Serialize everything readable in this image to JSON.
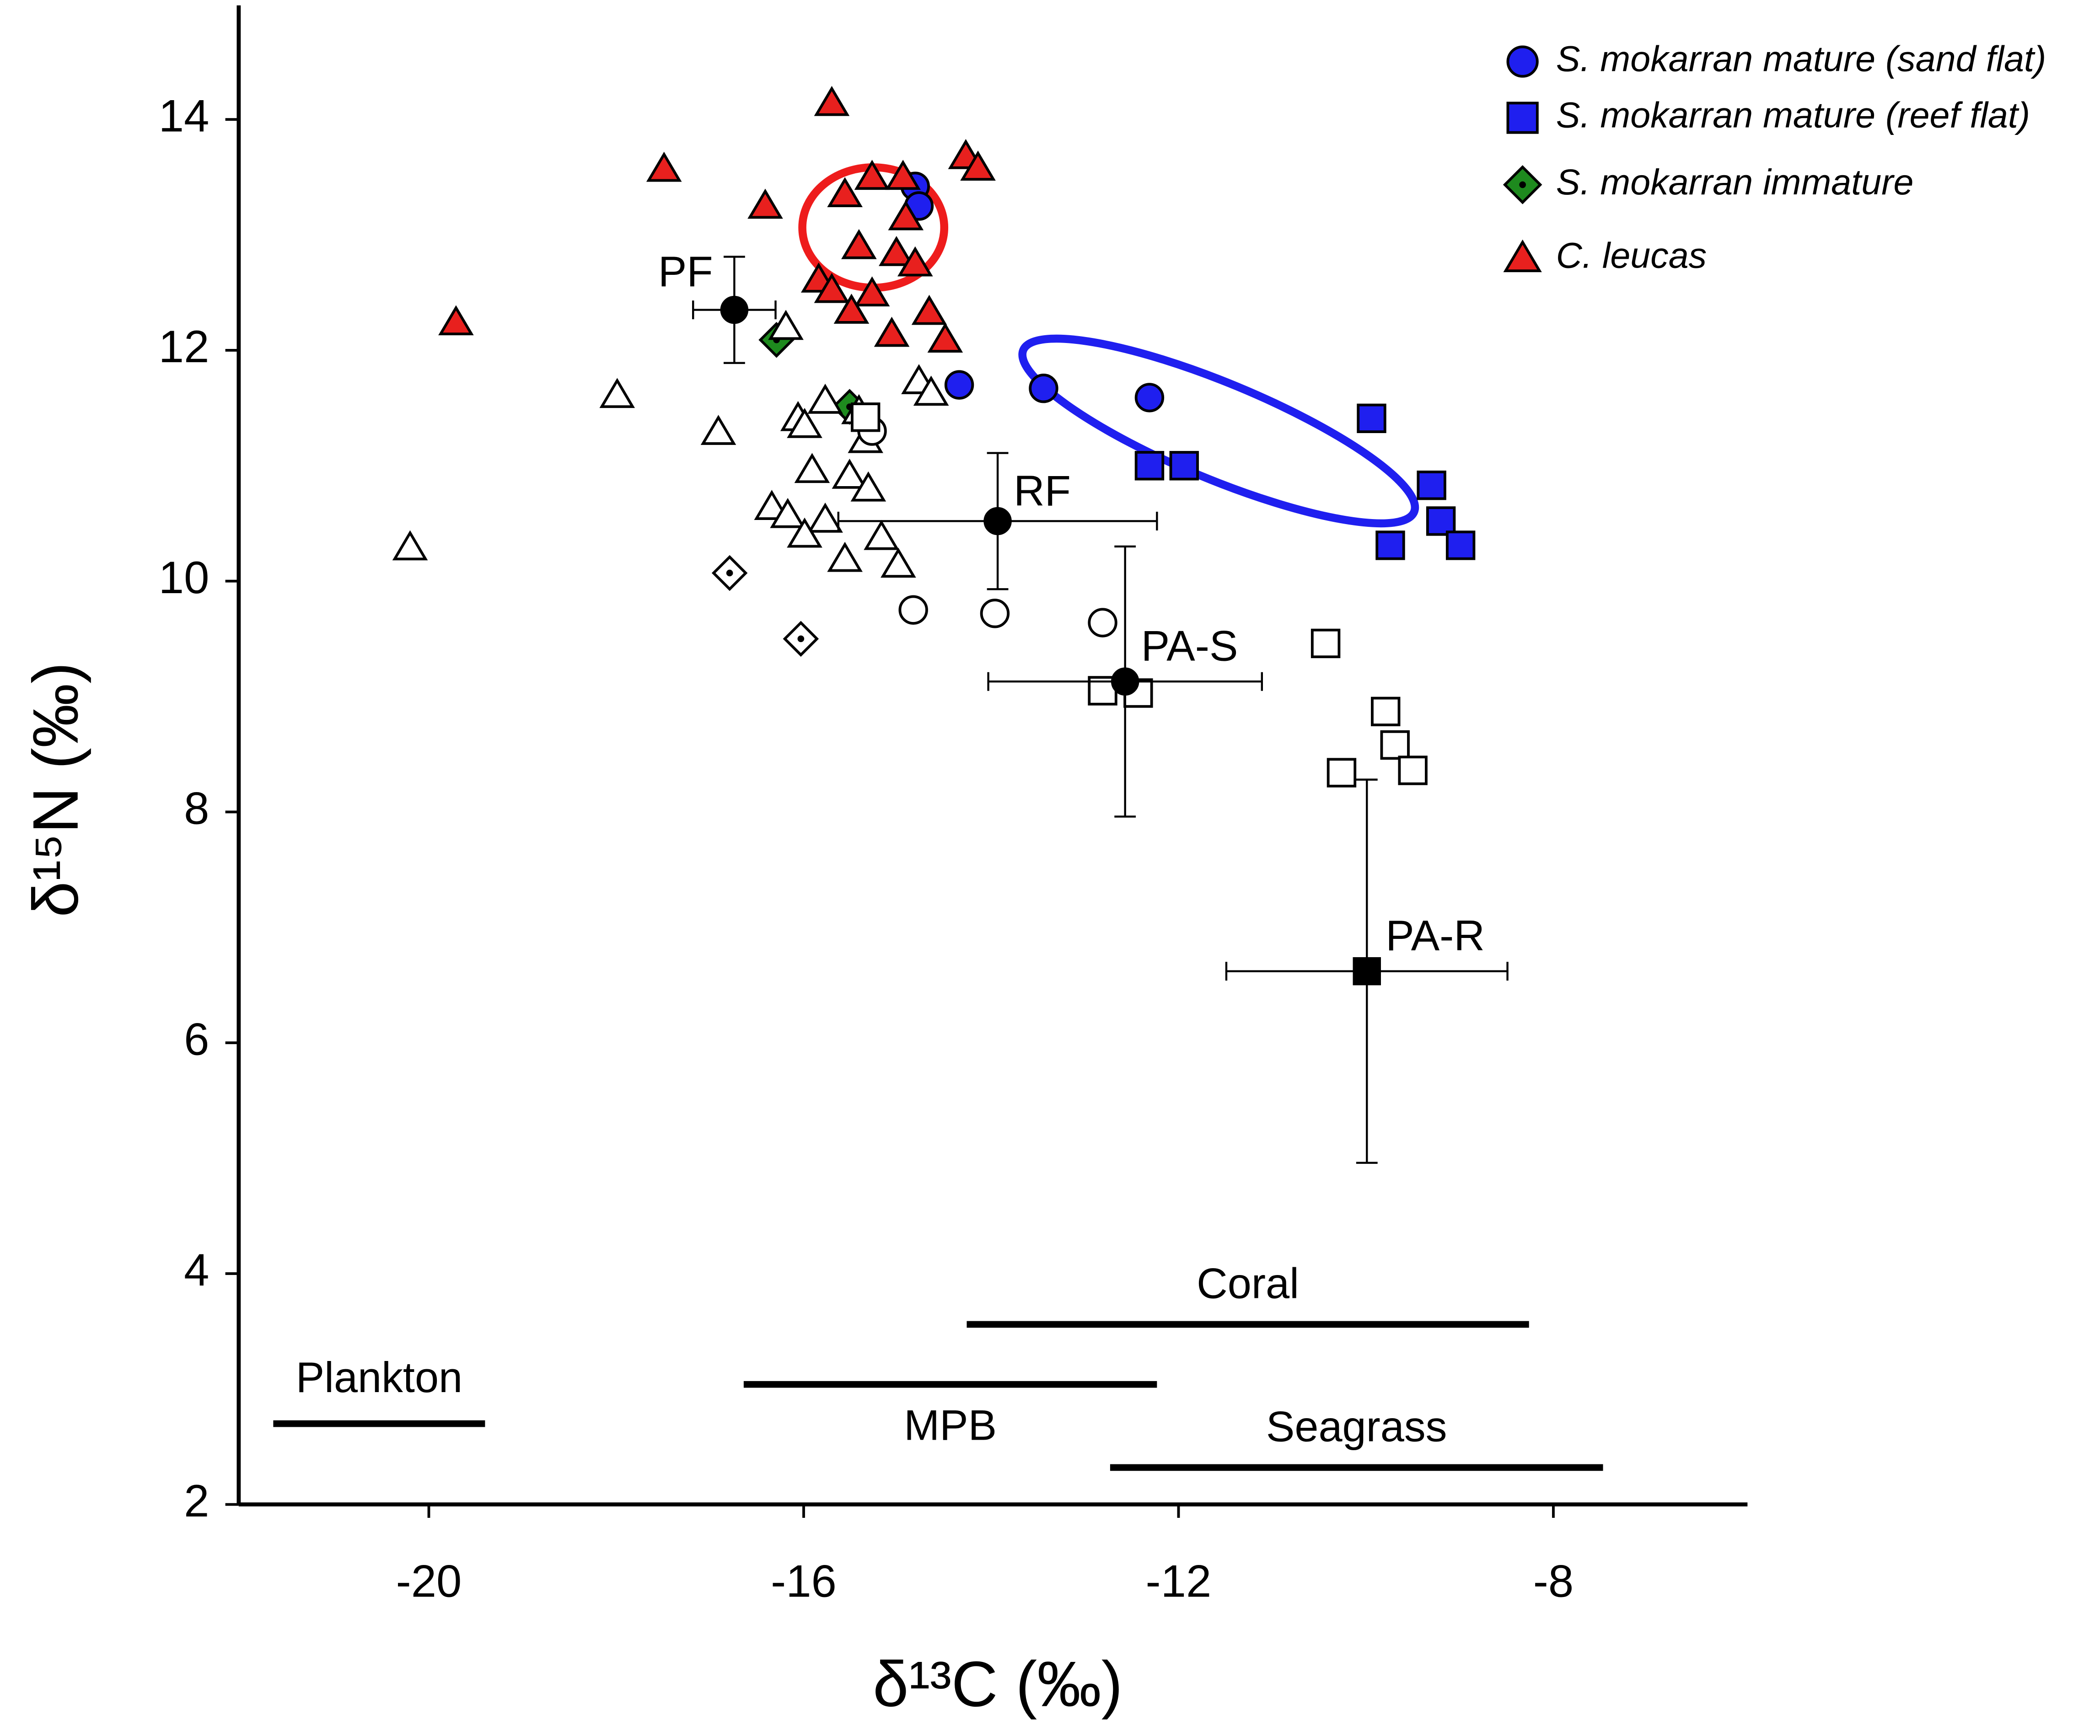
{
  "chart_data": {
    "type": "scatter",
    "xlabel": "δ¹³C (‰)",
    "ylabel": "δ¹⁵N (‰)",
    "xlim": [
      -22,
      -6
    ],
    "ylim": [
      2,
      15
    ],
    "xticks": [
      -20,
      -16,
      -12,
      -8
    ],
    "yticks": [
      2,
      4,
      6,
      8,
      10,
      12,
      14
    ],
    "series": [
      {
        "name": "S. mokarran mature (sand flat)",
        "color": "#1f1fef",
        "marker": "circle",
        "x": [
          -14.81,
          -14.77,
          -14.34,
          -13.44,
          -12.31
        ],
        "y": [
          13.42,
          13.25,
          11.7,
          11.67,
          11.59
        ]
      },
      {
        "name": "S. mokarran mature (reef flat)",
        "color": "#1f1fef",
        "marker": "square",
        "x": [
          -9.94,
          -12.31,
          -11.94,
          -9.3,
          -9.2,
          -9.74,
          -8.99
        ],
        "y": [
          11.41,
          11.0,
          11.0,
          10.83,
          10.52,
          10.31,
          10.31
        ]
      },
      {
        "name": "S. mokarran immature",
        "color": "#1e8a1e",
        "marker": "diamond",
        "x": [
          -16.29,
          -15.51
        ],
        "y": [
          12.09,
          11.51
        ]
      },
      {
        "name": "C. leucas",
        "color": "#e8201e",
        "marker": "triangle",
        "x": [
          -19.71,
          -17.49,
          -16.41,
          -15.7,
          -15.56,
          -15.27,
          -14.94,
          -14.91,
          -15.41,
          -15.01,
          -14.81,
          -14.27,
          -14.14,
          -15.84,
          -15.7,
          -15.27,
          -15.49,
          -15.06,
          -14.66,
          -14.49
        ],
        "y": [
          12.24,
          13.57,
          13.25,
          14.14,
          13.35,
          13.5,
          13.5,
          13.15,
          12.9,
          12.84,
          12.75,
          13.68,
          13.58,
          12.61,
          12.52,
          12.49,
          12.34,
          12.14,
          12.33,
          12.09
        ]
      },
      {
        "color": "#ffffff",
        "marker": "triangle",
        "x": [
          -20.2,
          -17.99,
          -16.91,
          -16.19,
          -16.06,
          -15.99,
          -15.77,
          -15.41,
          -15.34,
          -15.91,
          -15.51,
          -15.31,
          -16.34,
          -16.17,
          -15.77,
          -15.99,
          -15.56,
          -15.17,
          -14.99,
          -14.77,
          -14.64
        ],
        "y": [
          10.29,
          11.61,
          11.29,
          12.2,
          11.41,
          11.35,
          11.56,
          11.47,
          11.22,
          10.96,
          10.91,
          10.8,
          10.64,
          10.57,
          10.53,
          10.4,
          10.19,
          10.38,
          10.14,
          11.73,
          11.63
        ]
      },
      {
        "color": "#ffffff",
        "marker": "circle",
        "x": [
          -15.27,
          -14.83,
          -13.96,
          -12.81
        ],
        "y": [
          11.3,
          9.75,
          9.72,
          9.64
        ]
      },
      {
        "color": "#ffffff",
        "marker": "square",
        "x": [
          -15.34,
          -12.81,
          -12.43,
          -10.43,
          -9.79,
          -9.69,
          -9.5,
          -10.26
        ],
        "y": [
          11.42,
          9.05,
          9.03,
          9.46,
          8.87,
          8.58,
          8.36,
          8.34
        ]
      },
      {
        "color": "#ffffff",
        "marker": "diamond",
        "x": [
          -16.79,
          -16.03
        ],
        "y": [
          10.07,
          9.5
        ]
      }
    ],
    "groups": [
      {
        "label": "PF",
        "marker": "circle",
        "x": -16.74,
        "y": 12.35,
        "xerr": 0.44,
        "yerr": 0.46
      },
      {
        "label": "RF",
        "marker": "circle",
        "x": -13.93,
        "y": 10.52,
        "xerr": 1.7,
        "yerr": 0.59
      },
      {
        "label": "PA-S",
        "marker": "circle",
        "x": -12.57,
        "y": 9.13,
        "xerr": 1.46,
        "yerr": 1.17
      },
      {
        "label": "PA-R",
        "marker": "square",
        "x": -9.99,
        "y": 6.62,
        "xerr": 1.5,
        "yerr": 1.66
      }
    ],
    "sources": [
      {
        "label": "Plankton",
        "x": [
          -21.66,
          -19.4
        ],
        "y": 2.7
      },
      {
        "label": "MPB",
        "x": [
          -16.64,
          -12.23
        ],
        "y": 3.04
      },
      {
        "label": "Coral",
        "x": [
          -14.26,
          -8.26
        ],
        "y": 3.56
      },
      {
        "label": "Seagrass",
        "x": [
          -12.73,
          -7.47
        ],
        "y": 2.32
      }
    ]
  }
}
